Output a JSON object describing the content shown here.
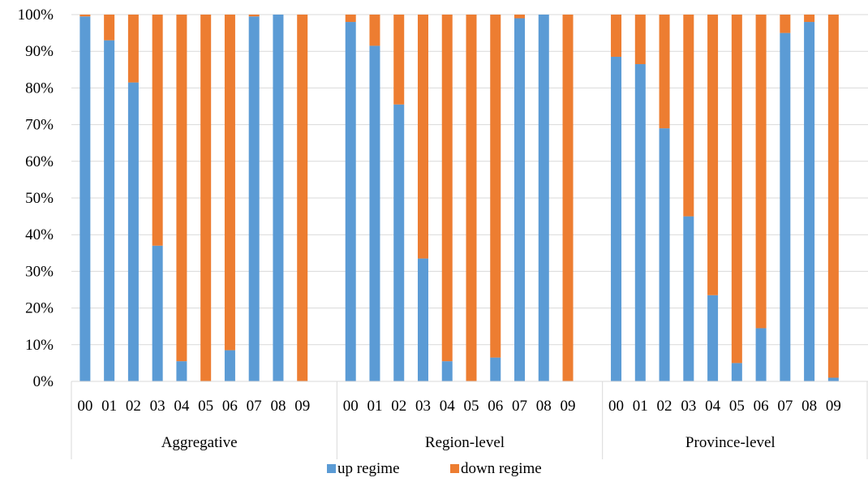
{
  "chart_data": {
    "type": "bar",
    "stacked": "percent",
    "groups": [
      {
        "name": "Aggregative",
        "categories": [
          "00",
          "01",
          "02",
          "03",
          "04",
          "05",
          "06",
          "07",
          "08",
          "09"
        ],
        "series": [
          {
            "name": "up regime",
            "values": [
              99.5,
              93,
              81.5,
              37,
              5.5,
              0,
              8.5,
              99.5,
              100,
              0
            ]
          },
          {
            "name": "down regime",
            "values": [
              0.5,
              7,
              18.5,
              63,
              94.5,
              100,
              91.5,
              0.5,
              0,
              100
            ]
          }
        ]
      },
      {
        "name": "Region-level",
        "categories": [
          "00",
          "01",
          "02",
          "03",
          "04",
          "05",
          "06",
          "07",
          "08",
          "09"
        ],
        "series": [
          {
            "name": "up regime",
            "values": [
              98,
              91.5,
              75.5,
              33.5,
              5.5,
              0,
              6.5,
              99,
              100,
              0
            ]
          },
          {
            "name": "down regime",
            "values": [
              2,
              8.5,
              24.5,
              66.5,
              94.5,
              100,
              93.5,
              1,
              0,
              100
            ]
          }
        ]
      },
      {
        "name": "Province-level",
        "categories": [
          "00",
          "01",
          "02",
          "03",
          "04",
          "05",
          "06",
          "07",
          "08",
          "09"
        ],
        "series": [
          {
            "name": "up regime",
            "values": [
              88.5,
              86.5,
              69,
              45,
              23.5,
              5,
              14.5,
              95,
              98,
              1
            ]
          },
          {
            "name": "down regime",
            "values": [
              11.5,
              13.5,
              31,
              55,
              76.5,
              95,
              85.5,
              5,
              2,
              99
            ]
          }
        ]
      }
    ],
    "yticks": [
      "0%",
      "10%",
      "20%",
      "30%",
      "40%",
      "50%",
      "60%",
      "70%",
      "80%",
      "90%",
      "100%"
    ],
    "ylim": [
      0,
      100
    ],
    "grid": true,
    "legend_position": "bottom",
    "colors": {
      "up regime": "#5B9BD5",
      "down regime": "#ED7D31"
    }
  }
}
